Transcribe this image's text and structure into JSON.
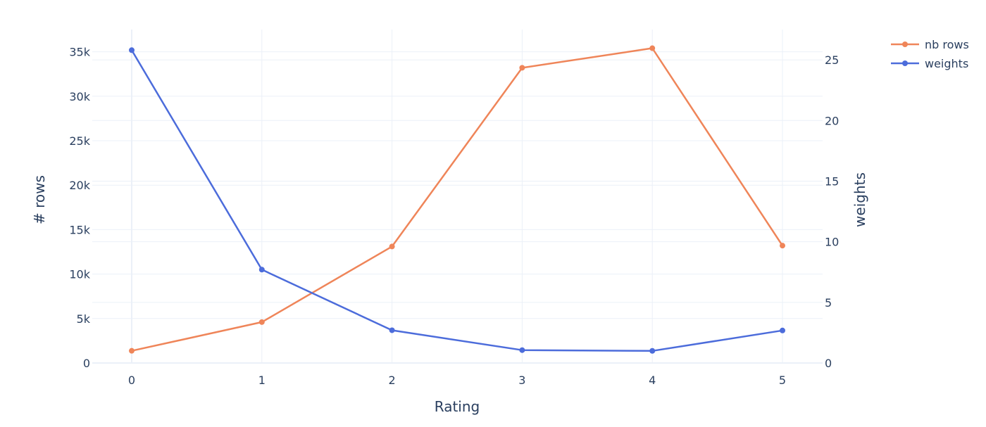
{
  "chart_data": {
    "type": "line",
    "x": [
      0,
      1,
      2,
      3,
      4,
      5
    ],
    "xlabel": "Rating",
    "ylabel": "# rows",
    "y2label": "weights",
    "ylim": [
      0,
      37500
    ],
    "y2lim": [
      0,
      27.5
    ],
    "xticks": [
      "0",
      "1",
      "2",
      "3",
      "4",
      "5"
    ],
    "yticks": [
      {
        "value": 0,
        "label": "0"
      },
      {
        "value": 5000,
        "label": "5k"
      },
      {
        "value": 10000,
        "label": "10k"
      },
      {
        "value": 15000,
        "label": "15k"
      },
      {
        "value": 20000,
        "label": "20k"
      },
      {
        "value": 25000,
        "label": "25k"
      },
      {
        "value": 30000,
        "label": "30k"
      },
      {
        "value": 35000,
        "label": "35k"
      }
    ],
    "y2ticks": [
      {
        "value": 0,
        "label": "0"
      },
      {
        "value": 5,
        "label": "5"
      },
      {
        "value": 10,
        "label": "10"
      },
      {
        "value": 15,
        "label": "15"
      },
      {
        "value": 20,
        "label": "20"
      },
      {
        "value": 25,
        "label": "25"
      }
    ],
    "grid": true,
    "legend": "top-right",
    "series": [
      {
        "name": "nb rows",
        "axis": "y",
        "color": "#ef8559",
        "values": [
          1370,
          4600,
          13100,
          33200,
          35400,
          13200
        ]
      },
      {
        "name": "weights",
        "axis": "y2",
        "color": "#4c6cdb",
        "values": [
          25.8,
          7.7,
          2.7,
          1.06,
          1.0,
          2.68
        ]
      }
    ]
  }
}
